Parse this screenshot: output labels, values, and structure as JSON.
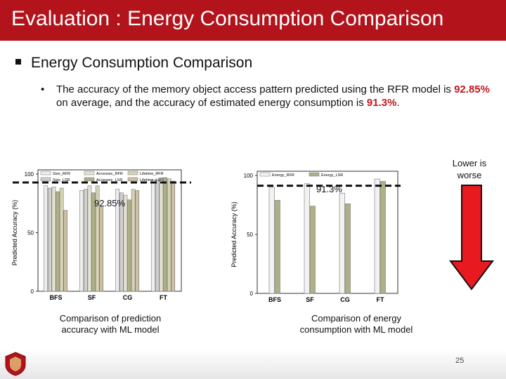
{
  "header": {
    "title": "Evaluation : Energy Consumption Comparison"
  },
  "bullet": {
    "text": "Energy Consumption Comparison"
  },
  "sub_bullet": {
    "marker": "•",
    "part1": "The accuracy of the memory object access pattern predicted using the RFR model is ",
    "value1": "92.85%",
    "part2": " on average, and the accuracy of estimated energy consumption is ",
    "value2": "91.3%",
    "part3": "."
  },
  "note": {
    "lower_is_worse": "Lower is worse"
  },
  "colors": {
    "accent": "#b3131b",
    "highlight": "#c0181e",
    "arrow": "#e8191f"
  },
  "chart_data": [
    {
      "type": "bar",
      "title": "",
      "xlabel": "",
      "ylabel": "Predicted Accuracy (%)",
      "ylim": [
        0,
        100
      ],
      "yticks": [
        "0",
        "50",
        "100"
      ],
      "categories": [
        "BFS",
        "SF",
        "CG",
        "FT"
      ],
      "series": [
        {
          "name": "Size_RFR",
          "values": [
            90,
            86,
            87,
            95
          ]
        },
        {
          "name": "Size_LSR",
          "values": [
            88,
            87,
            84,
            95
          ]
        },
        {
          "name": "Accessec_RFR",
          "values": [
            89,
            90,
            82,
            97
          ]
        },
        {
          "name": "Accessec_LSR",
          "values": [
            85,
            84,
            78,
            97
          ]
        },
        {
          "name": "Lifetime_RFR",
          "values": [
            88,
            90,
            87,
            96
          ]
        },
        {
          "name": "Lifetime_LSR",
          "values": [
            69,
            72,
            86,
            94
          ]
        }
      ],
      "legend": [
        "Size_RFR",
        "Accessec_RFR",
        "Lifetime_RFR",
        "Size_LSR",
        "Accessec_LSR",
        "Lifetime_LSR"
      ],
      "reference_line": {
        "value": 92.85,
        "label": "92.85%"
      },
      "caption": "Comparison of prediction accuracy with ML model",
      "colors": [
        "#ededed",
        "#cfcfcf",
        "#e5e2d2",
        "#aeb087",
        "#d6d3b4",
        "#cbbfa4"
      ]
    },
    {
      "type": "bar",
      "title": "",
      "xlabel": "",
      "ylabel": "Predicted Accuracy (%)",
      "ylim": [
        0,
        100
      ],
      "yticks": [
        "0",
        "50",
        "100"
      ],
      "categories": [
        "BFS",
        "SF",
        "CG",
        "FT"
      ],
      "series": [
        {
          "name": "Energy_RFR",
          "values": [
            90,
            93,
            85,
            97
          ]
        },
        {
          "name": "Energy_LSR",
          "values": [
            79,
            74,
            76,
            95
          ]
        }
      ],
      "legend": [
        "Energy_RFR",
        "Energy_LSR"
      ],
      "reference_line": {
        "value": 91.3,
        "label": "91.3%"
      },
      "caption": "Comparison of energy consumption with ML model",
      "colors": [
        "#f2f2f2",
        "#aeb087"
      ]
    }
  ],
  "footer": {
    "page": "25"
  }
}
